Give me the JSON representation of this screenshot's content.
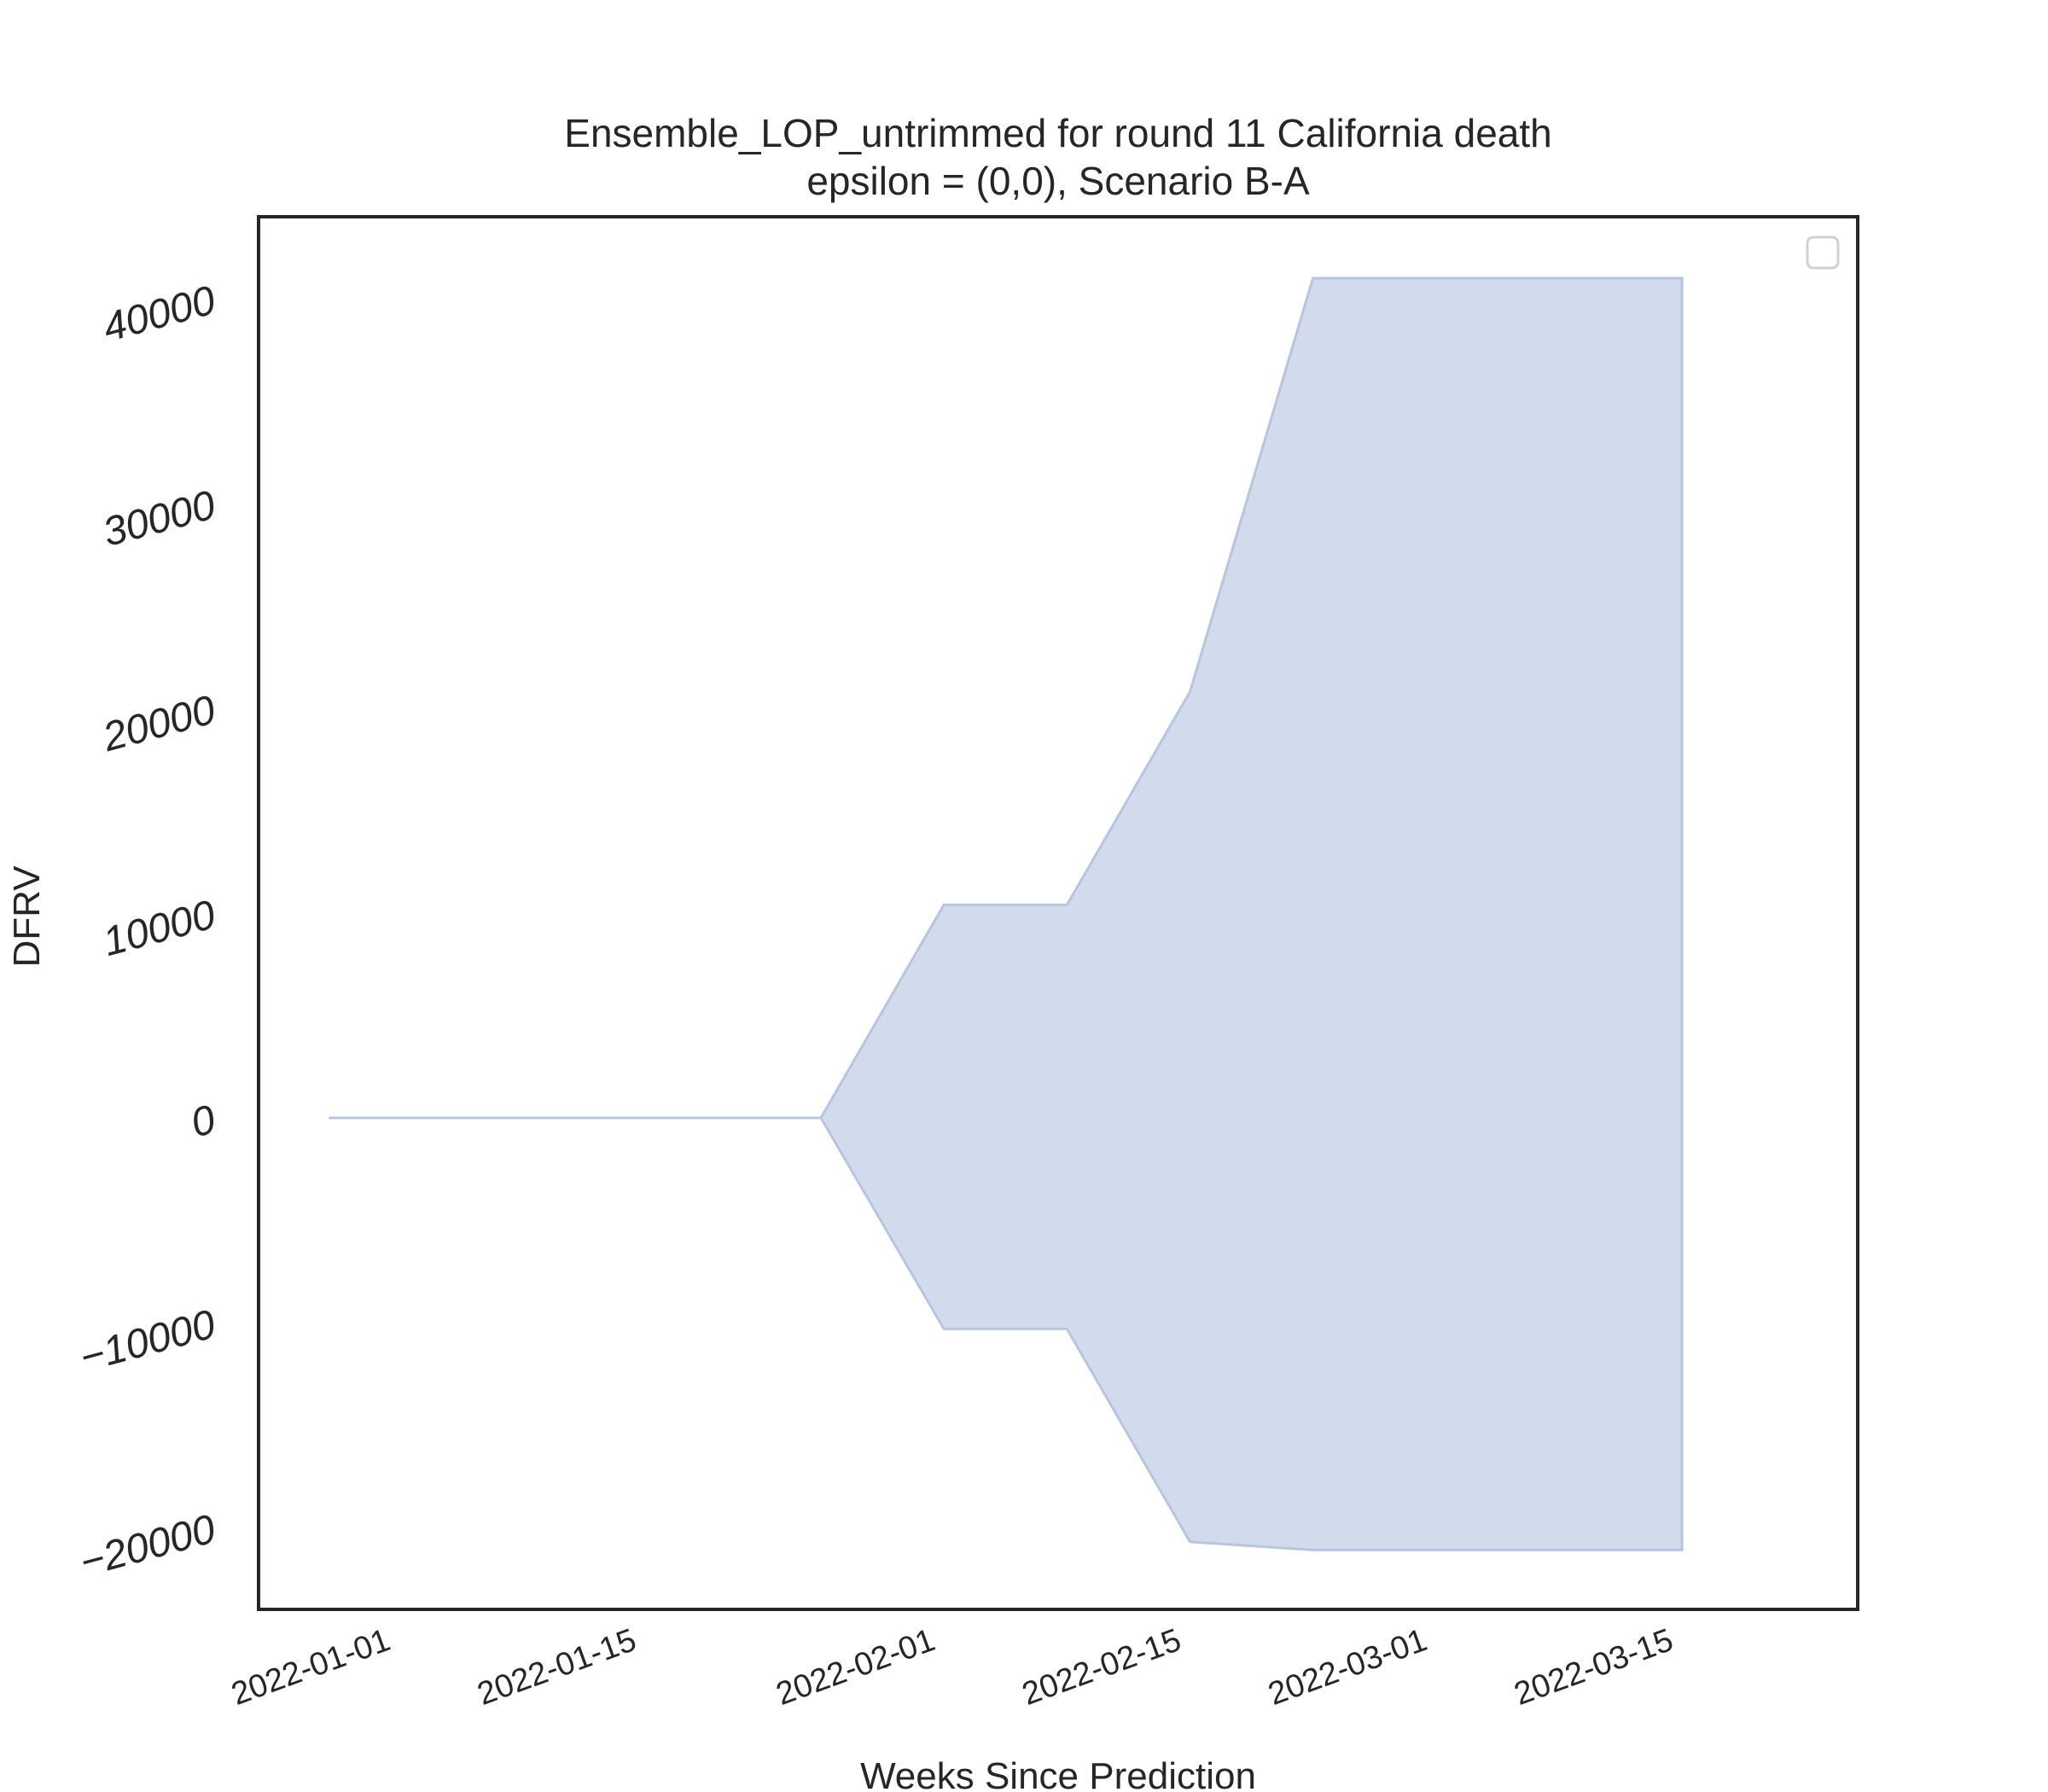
{
  "chart_data": {
    "type": "area",
    "title_line1": "Ensemble_LOP_untrimmed for round 11 California death",
    "title_line2": "epsilon = (0,0), Scenario B-A",
    "xlabel": "Weeks Since Prediction",
    "ylabel": "DFRV",
    "x_tick_labels": [
      "2022-01-01",
      "2022-01-15",
      "2022-02-01",
      "2022-02-15",
      "2022-03-01",
      "2022-03-15"
    ],
    "y_tick_labels": [
      "−20000",
      "−10000",
      "0",
      "10000",
      "20000",
      "30000",
      "40000"
    ],
    "y_tick_values": [
      -20000,
      -10000,
      0,
      10000,
      20000,
      30000,
      40000
    ],
    "xlim": [
      "2021-12-24",
      "2022-03-25"
    ],
    "ylim": [
      -24000,
      44000
    ],
    "grid": false,
    "legend": "top-right (empty)",
    "fill_color": "#d2dbeb",
    "edge_color": "#b7c5e0",
    "series": [
      {
        "x": [
          "2021-12-28",
          "2022-01-04",
          "2022-01-11",
          "2022-01-18",
          "2022-01-25",
          "2022-02-01",
          "2022-02-08",
          "2022-02-15",
          "2022-02-22",
          "2022-03-01",
          "2022-03-08",
          "2022-03-15"
        ],
        "lower": [
          0,
          0,
          0,
          0,
          0,
          -10300,
          -10300,
          -20700,
          -21100,
          -21100,
          -21100,
          -21100
        ],
        "upper": [
          0,
          0,
          0,
          0,
          0,
          10400,
          10400,
          20800,
          41000,
          41000,
          41000,
          41000
        ]
      }
    ]
  }
}
